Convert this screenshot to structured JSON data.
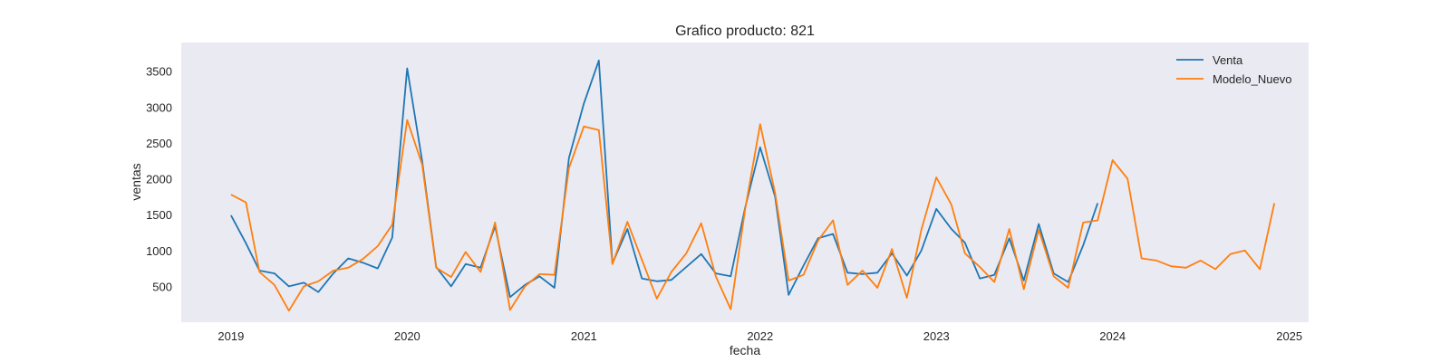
{
  "chart_data": {
    "type": "line",
    "title": "Grafico producto: 821",
    "xlabel": "fecha",
    "ylabel": "ventas",
    "ylim": [
      0,
      3900
    ],
    "xlim": [
      "2018-09-20",
      "2025-02-10"
    ],
    "y_ticks": [
      500,
      1000,
      1500,
      2000,
      2500,
      3000,
      3500
    ],
    "x_ticks": [
      "2019",
      "2020",
      "2021",
      "2022",
      "2023",
      "2024",
      "2025"
    ],
    "background": "#eaeaf2",
    "grid": false,
    "legend_position": "top-right",
    "series": [
      {
        "name": "Venta",
        "color": "#1f77b4",
        "start": "2019-01",
        "values": [
          1490,
          1100,
          720,
          680,
          500,
          550,
          420,
          680,
          890,
          830,
          750,
          1180,
          3540,
          2250,
          770,
          500,
          810,
          760,
          1340,
          350,
          520,
          640,
          480,
          2290,
          3050,
          3650,
          820,
          1300,
          610,
          570,
          590,
          770,
          950,
          680,
          640,
          1600,
          2440,
          1750,
          380,
          790,
          1170,
          1230,
          690,
          670,
          690,
          960,
          650,
          1000,
          1580,
          1300,
          1110,
          610,
          660,
          1170,
          580,
          1370,
          680,
          560,
          1070,
          1660
        ]
      },
      {
        "name": "Modelo_Nuevo",
        "color": "#ff7f0e",
        "start": "2019-01",
        "values": [
          1780,
          1670,
          700,
          520,
          160,
          500,
          570,
          720,
          760,
          880,
          1060,
          1360,
          2820,
          2200,
          760,
          630,
          980,
          700,
          1390,
          170,
          500,
          670,
          660,
          2150,
          2730,
          2680,
          810,
          1400,
          870,
          330,
          700,
          960,
          1380,
          640,
          180,
          1580,
          2760,
          1800,
          580,
          660,
          1140,
          1420,
          520,
          720,
          480,
          1020,
          340,
          1290,
          2020,
          1640,
          960,
          770,
          560,
          1300,
          460,
          1290,
          640,
          480,
          1390,
          1420,
          2260,
          2000,
          890,
          860,
          780,
          760,
          860,
          740,
          950,
          1000,
          740,
          1660
        ]
      }
    ]
  }
}
